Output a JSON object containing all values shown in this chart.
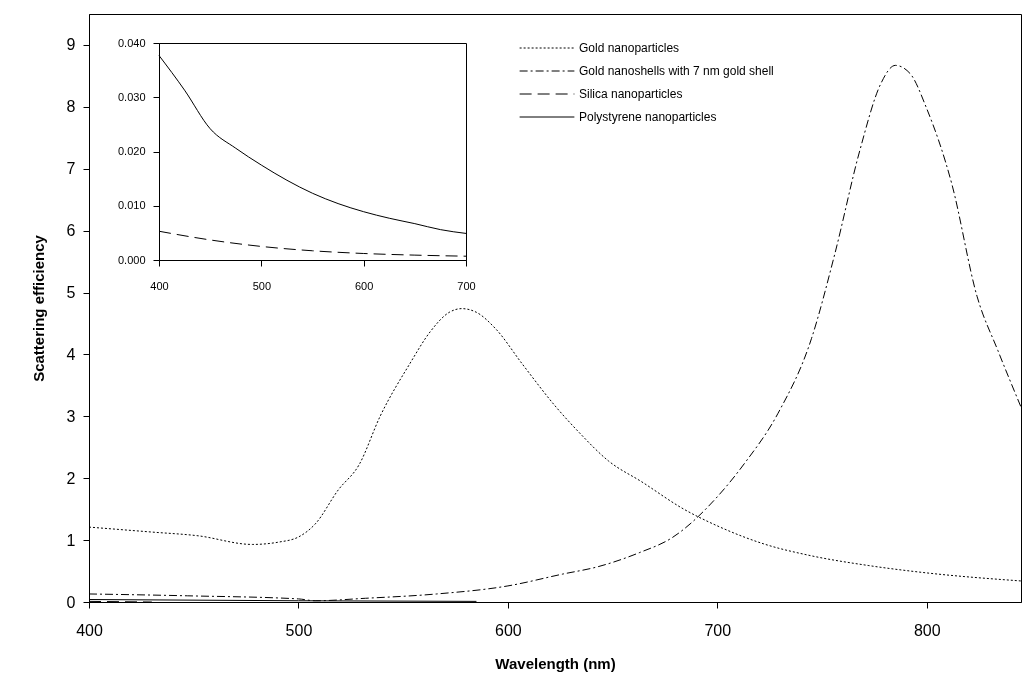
{
  "chart_data": [
    {
      "type": "line",
      "xlabel": "Wavelength (nm)",
      "ylabel": "Scattering efficiency",
      "xlim": [
        400,
        845
      ],
      "ylim": [
        0,
        9.5
      ],
      "xticks": [
        400,
        500,
        600,
        700,
        800
      ],
      "yticks": [
        0,
        1,
        2,
        3,
        4,
        5,
        6,
        7,
        8,
        9
      ],
      "grid": false,
      "legend": "top",
      "series": [
        {
          "name": "Gold nanoparticles",
          "color": "#000000",
          "line_style": "dotted",
          "x": [
            400,
            430,
            452,
            478,
            491,
            500,
            508,
            519,
            529,
            539,
            553,
            563,
            572,
            578,
            585,
            594,
            607,
            623,
            634,
            648,
            664,
            684,
            700,
            723,
            743,
            772,
            800,
            845
          ],
          "values": [
            1.21,
            1.13,
            1.07,
            0.93,
            0.97,
            1.05,
            1.26,
            1.81,
            2.22,
            3.0,
            3.84,
            4.37,
            4.68,
            4.74,
            4.68,
            4.42,
            3.84,
            3.15,
            2.74,
            2.28,
            1.94,
            1.5,
            1.23,
            0.93,
            0.76,
            0.59,
            0.47,
            0.34
          ]
        },
        {
          "name": "Gold nanoshells with 7 nm gold shell",
          "color": "#000000",
          "line_style": "dashdot",
          "x": [
            400,
            447,
            500,
            508,
            532,
            566,
            600,
            626,
            643,
            663,
            678,
            700,
            713,
            729,
            745,
            756,
            768,
            778,
            785,
            792,
            800,
            812,
            824,
            834,
            845
          ],
          "values": [
            0.13,
            0.1,
            0.05,
            0.02,
            0.06,
            0.13,
            0.26,
            0.45,
            0.57,
            0.8,
            1.03,
            1.7,
            2.24,
            3.05,
            4.26,
            5.61,
            7.29,
            8.37,
            8.67,
            8.54,
            7.97,
            6.75,
            4.94,
            4.06,
            3.15
          ]
        },
        {
          "name": "Silica nanoparticles",
          "color": "#000000",
          "line_style": "dashed",
          "x": [
            400,
            430
          ],
          "values": [
            0.01,
            0.0
          ]
        },
        {
          "name": "Polystyrene nanoparticles",
          "color": "#000000",
          "line_style": "solid",
          "x": [
            400,
            500,
            585
          ],
          "values": [
            0.04,
            0.02,
            0.01
          ]
        }
      ]
    },
    {
      "type": "line",
      "xlim": [
        400,
        700
      ],
      "ylim": [
        0,
        0.04
      ],
      "xticks": [
        400,
        500,
        600,
        700
      ],
      "yticks": [
        {
          "value": 0,
          "label": "0.000"
        },
        {
          "value": 0.01,
          "label": "0.010"
        },
        {
          "value": 0.02,
          "label": "0.020"
        },
        {
          "value": 0.03,
          "label": "0.030"
        },
        {
          "value": 0.04,
          "label": "0.040"
        }
      ],
      "grid": false,
      "series": [
        {
          "color": "#000000",
          "line_style": "dashed",
          "x": [
            400,
            450,
            500,
            550,
            600,
            650,
            700
          ],
          "values": [
            0.0053,
            0.0037,
            0.0025,
            0.0017,
            0.0012,
            0.0009,
            0.0007
          ]
        },
        {
          "color": "#000000",
          "line_style": "solid",
          "x": [
            400,
            425,
            450,
            475,
            500,
            525,
            550,
            575,
            600,
            625,
            650,
            675,
            700
          ],
          "values": [
            0.0377,
            0.0313,
            0.0242,
            0.0206,
            0.0175,
            0.0147,
            0.0123,
            0.0104,
            0.0089,
            0.0077,
            0.0067,
            0.0056,
            0.0049
          ]
        }
      ]
    }
  ]
}
